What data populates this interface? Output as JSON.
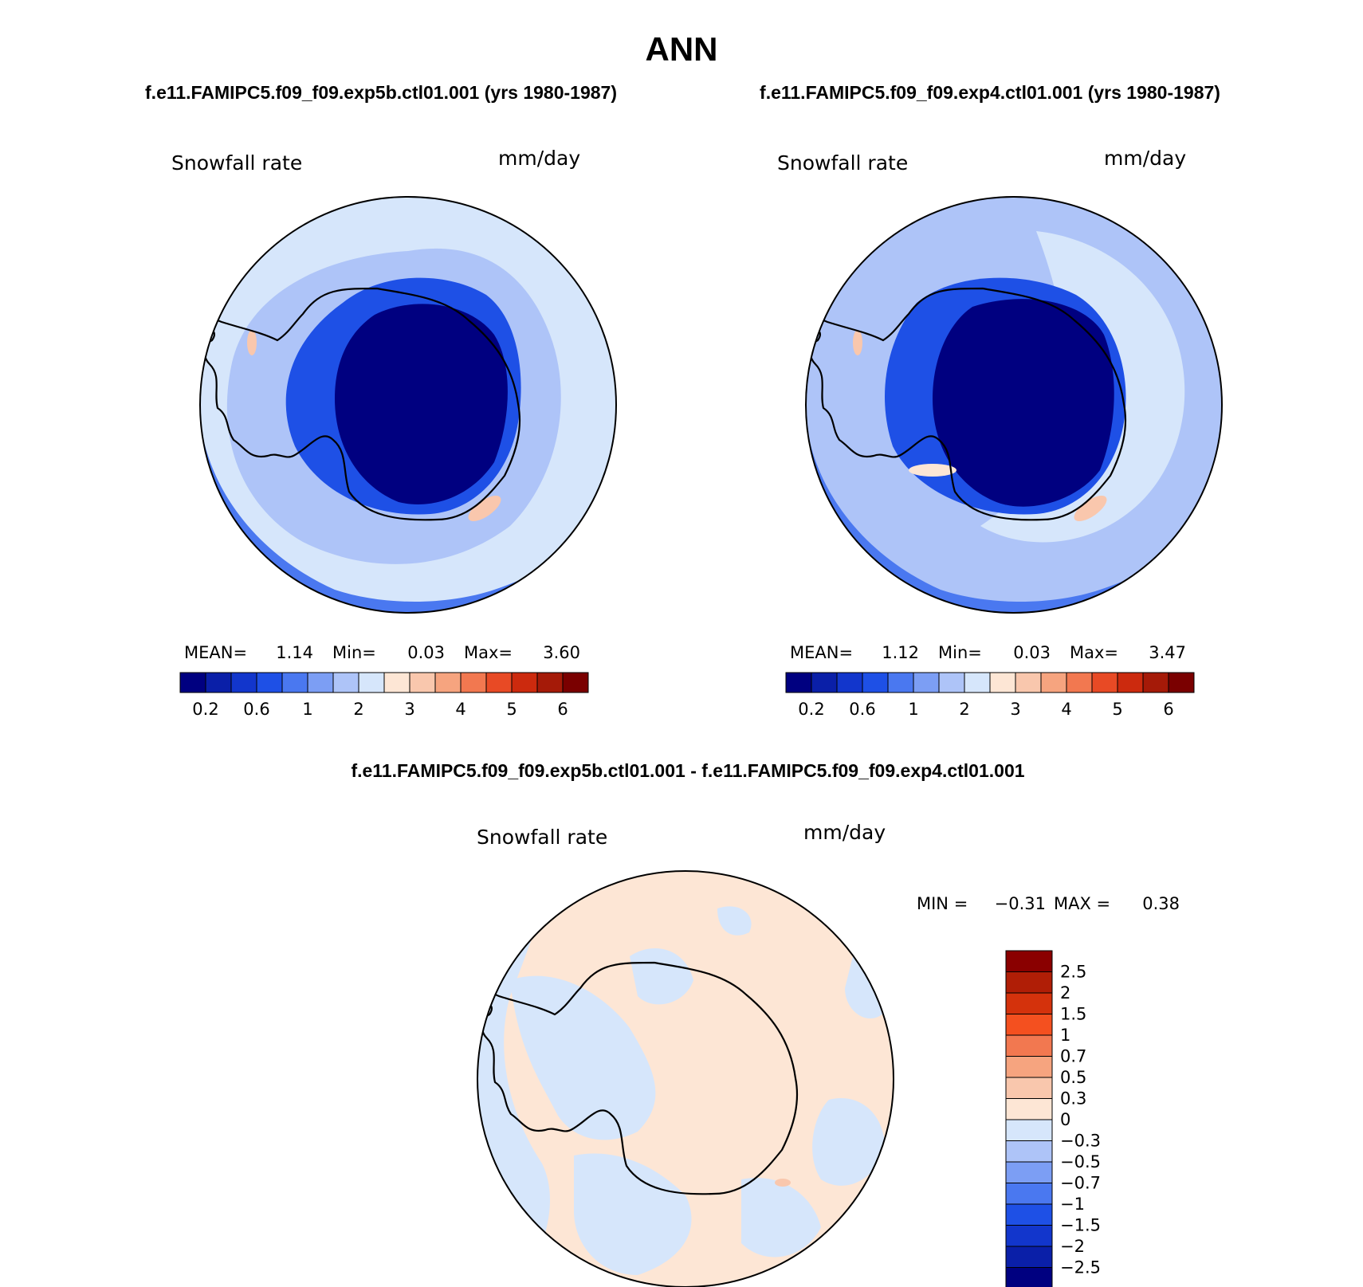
{
  "season": "ANN",
  "panels": [
    {
      "case": "f.e11.FAMIPC5.f09_f09.exp5b.ctl01.001 (yrs 1980-1987)",
      "variable": "Snowfall rate",
      "units": "mm/day",
      "stats": {
        "mean_label": "MEAN=",
        "mean": "1.14",
        "min_label": "Min=",
        "min": "0.03",
        "max_label": "Max=",
        "max": "3.60"
      },
      "colorbar_ticks": [
        "0.2",
        "0.6",
        "1",
        "2",
        "3",
        "4",
        "5",
        "6"
      ]
    },
    {
      "case": "f.e11.FAMIPC5.f09_f09.exp4.ctl01.001 (yrs 1980-1987)",
      "variable": "Snowfall rate",
      "units": "mm/day",
      "stats": {
        "mean_label": "MEAN=",
        "mean": "1.12",
        "min_label": "Min=",
        "min": "0.03",
        "max_label": "Max=",
        "max": "3.47"
      },
      "colorbar_ticks": [
        "0.2",
        "0.6",
        "1",
        "2",
        "3",
        "4",
        "5",
        "6"
      ]
    }
  ],
  "diff": {
    "title": "f.e11.FAMIPC5.f09_f09.exp5b.ctl01.001 - f.e11.FAMIPC5.f09_f09.exp4.ctl01.001",
    "variable": "Snowfall rate",
    "units": "mm/day",
    "stats": {
      "min_label": "MIN =",
      "min": "−0.31",
      "max_label": "MAX =",
      "max": "0.38"
    },
    "colorbar_labels": [
      "2.5",
      "2",
      "1.5",
      "1",
      "0.7",
      "0.5",
      "0.3",
      "0",
      "−0.3",
      "−0.5",
      "−0.7",
      "−1",
      "−1.5",
      "−2",
      "−2.5"
    ]
  },
  "colors": {
    "abs_scale": [
      "#000080",
      "#0a1fa8",
      "#1236cc",
      "#1e50e6",
      "#4a78f0",
      "#7c9ef4",
      "#aec4f8",
      "#d6e6fb",
      "#fde6d5",
      "#f9c7ad",
      "#f6a47f",
      "#f27850",
      "#e84a25",
      "#cc2a0e",
      "#a51a08",
      "#7a0000"
    ],
    "diff_scale": [
      "#000080",
      "#0a1fa8",
      "#1236cc",
      "#1e50e6",
      "#4a78f0",
      "#7c9ef4",
      "#aec4f8",
      "#d6e6fb",
      "#fde6d5",
      "#f9c7ad",
      "#f6a47f",
      "#f27850",
      "#f4501f",
      "#d4320c",
      "#b01e06",
      "#8a0000"
    ]
  }
}
